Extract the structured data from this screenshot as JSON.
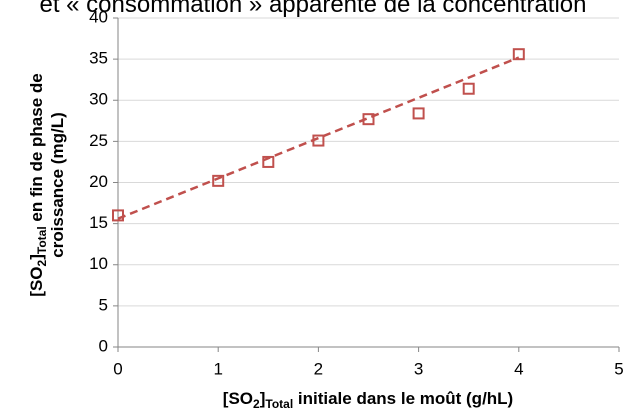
{
  "chart_data": {
    "type": "scatter",
    "title": "et « consommation » apparente de la concentration",
    "y_label": {
      "pre": "[SO",
      "sub1": "2",
      "mid": "]",
      "sub2": "Total",
      "post": " en fin de phase de",
      "line2": "croissance (mg/L)"
    },
    "x_label": {
      "pre": "[SO",
      "sub1": "2",
      "mid": "]",
      "sub2": "Total",
      "post": " initiale dans le moût (g/hL)"
    },
    "x": [
      0,
      1,
      1.5,
      2,
      2.5,
      3,
      3.5,
      4
    ],
    "values": [
      16,
      20.2,
      22.5,
      25.1,
      27.7,
      28.4,
      31.4,
      35.6
    ],
    "color": "#c0504d",
    "trendline": {
      "x": [
        0,
        4
      ],
      "y": [
        15.6,
        35.2
      ]
    },
    "xlim": [
      0,
      5
    ],
    "xticks": [
      0,
      1,
      2,
      3,
      4,
      5
    ],
    "ylim": [
      0,
      40
    ],
    "yticks": [
      0,
      5,
      10,
      15,
      20,
      25,
      30,
      35,
      40
    ],
    "grid": true
  }
}
